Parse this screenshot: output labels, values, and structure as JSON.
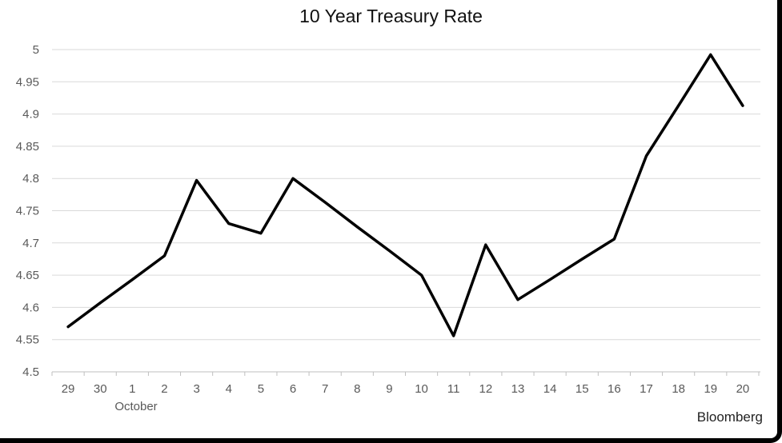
{
  "chart": {
    "title": "10 Year Treasury Rate",
    "month_label": "October",
    "source_label": "Bloomberg"
  },
  "chart_data": {
    "type": "line",
    "title": "10 Year Treasury Rate",
    "categories": [
      "29",
      "30",
      "1",
      "2",
      "3",
      "4",
      "5",
      "6",
      "7",
      "8",
      "9",
      "10",
      "11",
      "12",
      "13",
      "14",
      "15",
      "16",
      "17",
      "18",
      "19",
      "20"
    ],
    "values": [
      4.57,
      4.607,
      4.643,
      4.68,
      4.797,
      4.73,
      4.715,
      4.8,
      4.763,
      4.725,
      4.688,
      4.65,
      4.556,
      4.697,
      4.612,
      4.643,
      4.675,
      4.706,
      4.835,
      4.913,
      4.992,
      4.913
    ],
    "xlabel": "",
    "ylabel": "",
    "ylim": [
      4.5,
      5.0
    ],
    "y_tick_labels": [
      "5",
      "4.95",
      "4.9",
      "4.85",
      "4.8",
      "4.75",
      "4.7",
      "4.65",
      "4.6",
      "4.55",
      "4.5"
    ],
    "grid": true,
    "legend": false,
    "annotations": [
      "October",
      "Bloomberg"
    ],
    "line_color": "#000000",
    "gridline_color": "#d9d9d9",
    "axis_color": "#bfbfbf",
    "label_color": "#595959"
  }
}
